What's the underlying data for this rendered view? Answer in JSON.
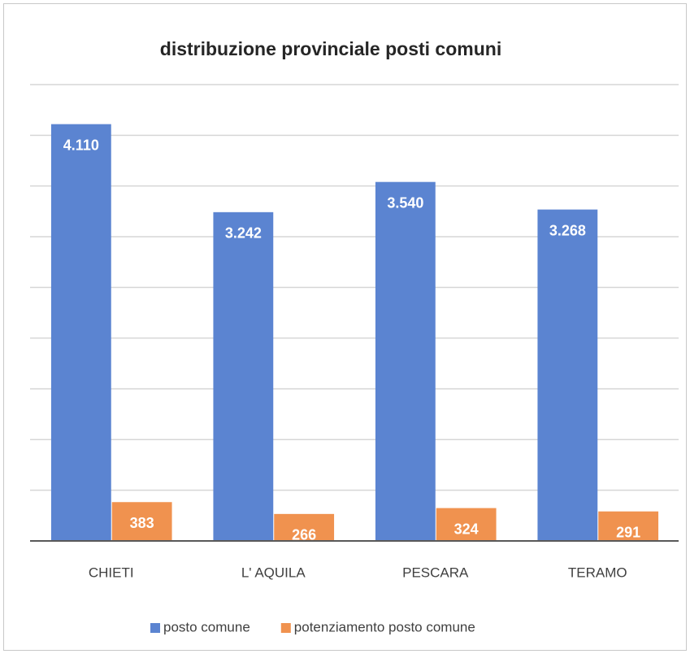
{
  "chart_data": {
    "type": "bar",
    "title": "distribuzione provinciale posti comuni",
    "categories": [
      "CHIETI",
      "L' AQUILA",
      "PESCARA",
      "TERAMO"
    ],
    "series": [
      {
        "name": "posto comune",
        "color": "#5b84d1",
        "values": [
          4110,
          3242,
          3540,
          3268
        ],
        "value_labels": [
          "4.110",
          "3.242",
          "3.540",
          "3.268"
        ]
      },
      {
        "name": "potenziamento posto comune",
        "color": "#f0924f",
        "values": [
          383,
          266,
          324,
          291
        ]
      }
    ],
    "ylim": [
      0,
      4500
    ],
    "yticks": [
      0,
      500,
      1000,
      1500,
      2000,
      2500,
      3000,
      3500,
      4000,
      4500
    ],
    "grid": true,
    "legend": "bottom"
  }
}
